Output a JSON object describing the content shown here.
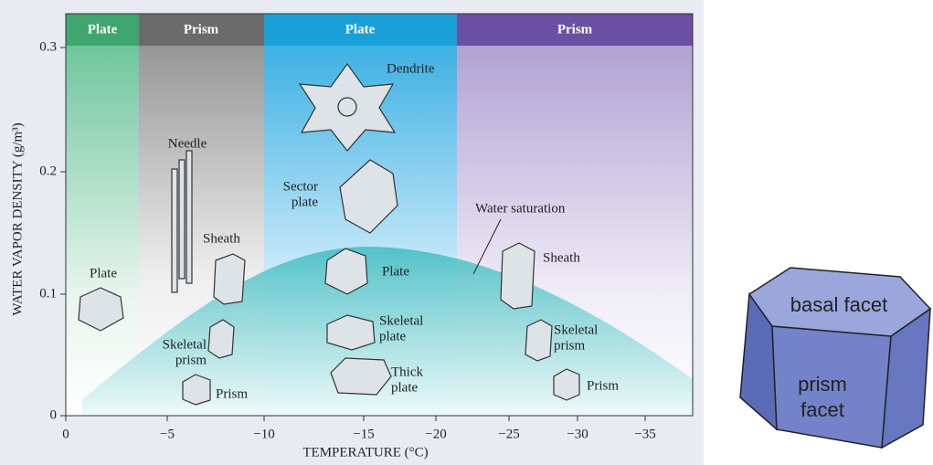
{
  "regions": [
    {
      "label": "Plate"
    },
    {
      "label": "Prism"
    },
    {
      "label": "Plate"
    },
    {
      "label": "Prism"
    }
  ],
  "axes": {
    "y_label": "WATER VAPOR DENSITY (g/m³)",
    "x_label": "TEMPERATURE (°C)",
    "y_ticks": [
      "0",
      "0.1",
      "0.2",
      "0.3"
    ],
    "x_ticks": [
      "0",
      "−5",
      "−10",
      "−15",
      "−20",
      "−25",
      "−30",
      "−35"
    ]
  },
  "annotation": "Water saturation",
  "crystals": [
    {
      "lines": [
        "Dendrite"
      ]
    },
    {
      "lines": [
        "Needle"
      ]
    },
    {
      "lines": [
        "Sector",
        "plate"
      ]
    },
    {
      "lines": [
        "Sheath"
      ]
    },
    {
      "lines": [
        "Plate"
      ]
    },
    {
      "lines": [
        "Plate"
      ]
    },
    {
      "lines": [
        "Sheath"
      ]
    },
    {
      "lines": [
        "Skeletal",
        "prism"
      ]
    },
    {
      "lines": [
        "Skeletal",
        "plate"
      ]
    },
    {
      "lines": [
        "Skeletal",
        "prism"
      ]
    },
    {
      "lines": [
        "Prism"
      ]
    },
    {
      "lines": [
        "Thick",
        "plate"
      ]
    },
    {
      "lines": [
        "Prism"
      ]
    }
  ],
  "facet_diagram": {
    "top": "basal facet",
    "side": [
      "prism",
      "facet"
    ]
  }
}
